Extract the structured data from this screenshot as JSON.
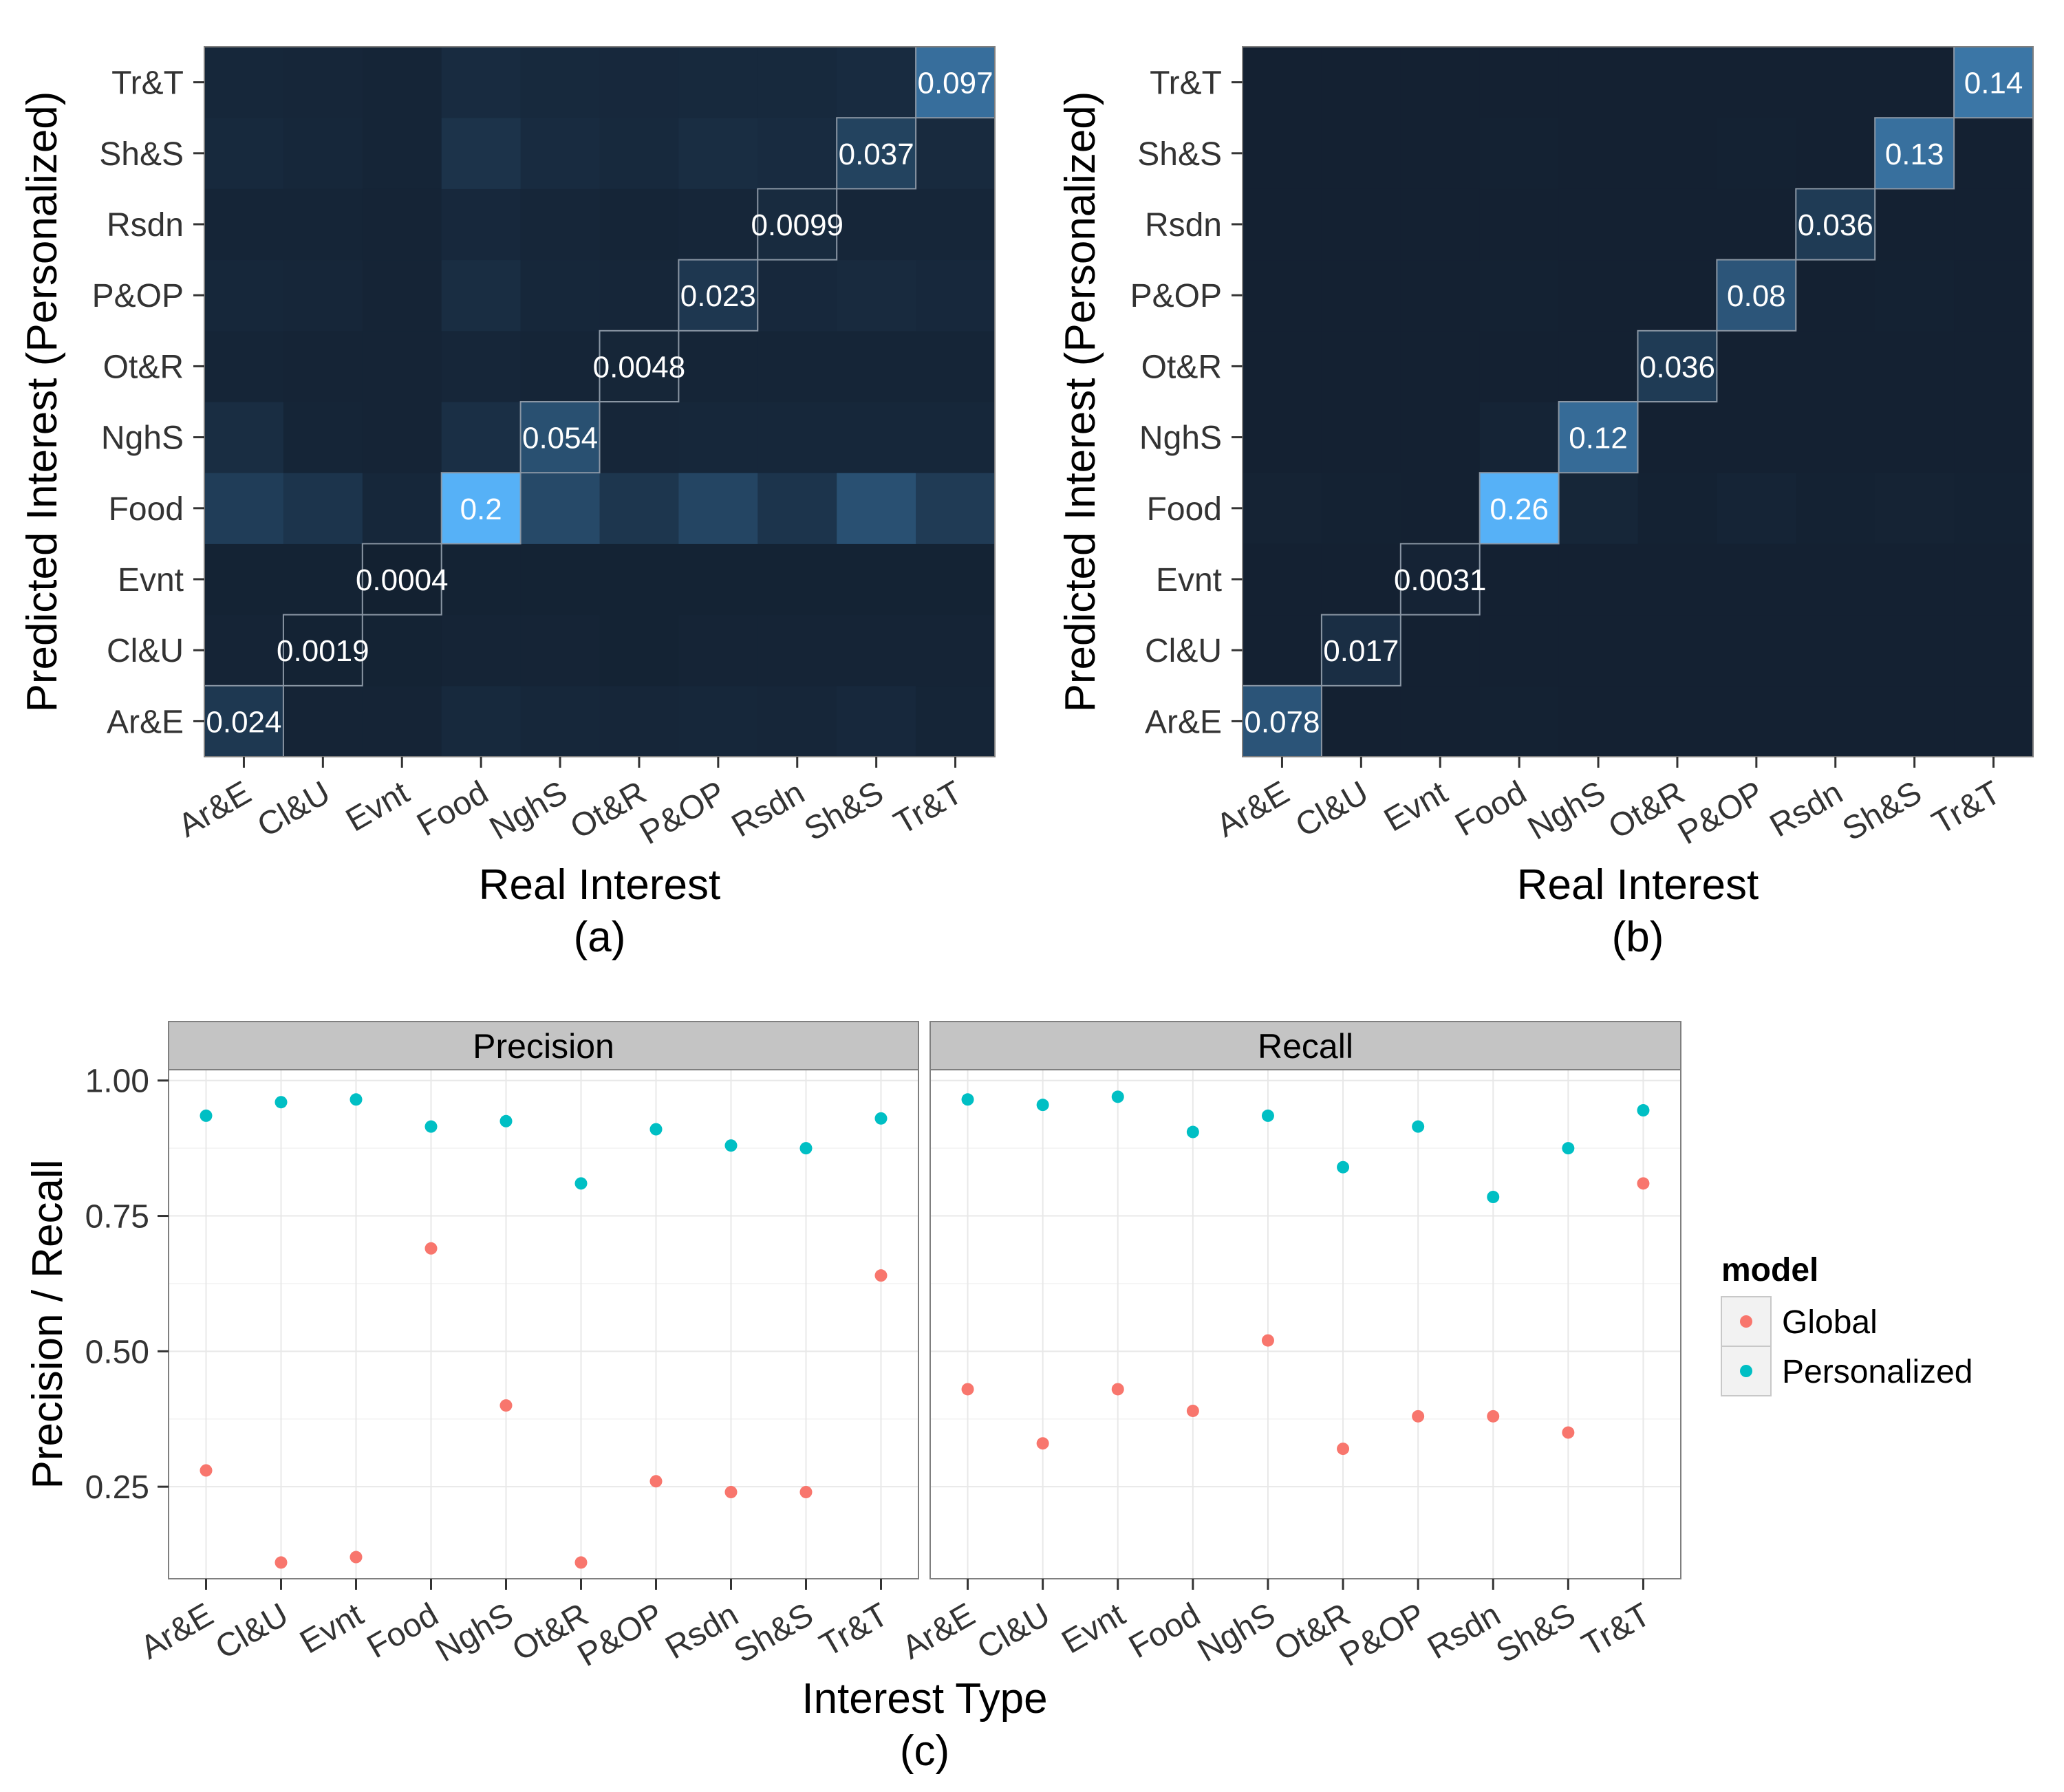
{
  "chart_data": [
    {
      "type": "heatmap",
      "panel_label": "(a)",
      "xlabel": "Real Interest",
      "ylabel": "Predicted Interest (Personalized)",
      "categories": [
        "Ar&E",
        "Cl&U",
        "Evnt",
        "Food",
        "NghS",
        "Ot&R",
        "P&OP",
        "Rsdn",
        "Sh&S",
        "Tr&T"
      ],
      "matrix": [
        [
          0.024,
          0.003,
          0.003,
          0.008,
          0.006,
          0.005,
          0.006,
          0.005,
          0.007,
          0.004
        ],
        [
          0.003,
          0.0019,
          0.002,
          0.003,
          0.003,
          0.002,
          0.003,
          0.003,
          0.003,
          0.003
        ],
        [
          0.002,
          0.002,
          0.0004,
          0.002,
          0.002,
          0.002,
          0.002,
          0.002,
          0.002,
          0.002
        ],
        [
          0.03,
          0.02,
          0.006,
          0.2,
          0.045,
          0.022,
          0.04,
          0.02,
          0.055,
          0.028
        ],
        [
          0.012,
          0.004,
          0.003,
          0.014,
          0.054,
          0.005,
          0.006,
          0.006,
          0.006,
          0.006
        ],
        [
          0.004,
          0.003,
          0.003,
          0.005,
          0.004,
          0.0048,
          0.004,
          0.004,
          0.004,
          0.004
        ],
        [
          0.006,
          0.005,
          0.003,
          0.012,
          0.006,
          0.005,
          0.023,
          0.007,
          0.009,
          0.007
        ],
        [
          0.004,
          0.004,
          0.003,
          0.007,
          0.005,
          0.004,
          0.005,
          0.0099,
          0.005,
          0.005
        ],
        [
          0.008,
          0.006,
          0.004,
          0.018,
          0.01,
          0.008,
          0.012,
          0.01,
          0.037,
          0.009
        ],
        [
          0.006,
          0.005,
          0.004,
          0.01,
          0.008,
          0.007,
          0.008,
          0.008,
          0.01,
          0.097
        ]
      ],
      "diagonal_labels": [
        "0.024",
        "0.0019",
        "0.0004",
        "0.2",
        "0.054",
        "0.0048",
        "0.023",
        "0.0099",
        "0.037",
        "0.097"
      ],
      "color_low": "#132030",
      "color_high": "#56b1f7"
    },
    {
      "type": "heatmap",
      "panel_label": "(b)",
      "xlabel": "Real Interest",
      "ylabel": "Predicted Interest (Personalized)",
      "categories": [
        "Ar&E",
        "Cl&U",
        "Evnt",
        "Food",
        "NghS",
        "Ot&R",
        "P&OP",
        "Rsdn",
        "Sh&S",
        "Tr&T"
      ],
      "matrix": [
        [
          0.078,
          0.001,
          0.001,
          0.002,
          0.001,
          0.001,
          0.001,
          0.001,
          0.001,
          0.001
        ],
        [
          0.001,
          0.017,
          0.001,
          0.001,
          0.001,
          0.001,
          0.001,
          0.001,
          0.001,
          0.001
        ],
        [
          0.001,
          0.001,
          0.0031,
          0.001,
          0.001,
          0.001,
          0.001,
          0.001,
          0.001,
          0.001
        ],
        [
          0.003,
          0.002,
          0.001,
          0.26,
          0.006,
          0.002,
          0.004,
          0.002,
          0.003,
          0.002
        ],
        [
          0.001,
          0.001,
          0.001,
          0.004,
          0.12,
          0.001,
          0.001,
          0.001,
          0.001,
          0.001
        ],
        [
          0.001,
          0.001,
          0.001,
          0.001,
          0.001,
          0.036,
          0.001,
          0.001,
          0.001,
          0.001
        ],
        [
          0.001,
          0.001,
          0.001,
          0.002,
          0.001,
          0.001,
          0.08,
          0.001,
          0.002,
          0.001
        ],
        [
          0.001,
          0.001,
          0.001,
          0.001,
          0.001,
          0.001,
          0.001,
          0.036,
          0.001,
          0.001
        ],
        [
          0.001,
          0.001,
          0.001,
          0.002,
          0.001,
          0.001,
          0.002,
          0.001,
          0.13,
          0.001
        ],
        [
          0.001,
          0.001,
          0.001,
          0.001,
          0.001,
          0.001,
          0.001,
          0.001,
          0.001,
          0.14
        ]
      ],
      "diagonal_labels": [
        "0.078",
        "0.017",
        "0.0031",
        "0.26",
        "0.12",
        "0.036",
        "0.08",
        "0.036",
        "0.13",
        "0.14"
      ],
      "color_low": "#132030",
      "color_high": "#56b1f7"
    },
    {
      "type": "scatter",
      "panel_label": "(c)",
      "xlabel": "Interest Type",
      "ylabel": "Precision / Recall",
      "categories": [
        "Ar&E",
        "Cl&U",
        "Evnt",
        "Food",
        "NghS",
        "Ot&R",
        "P&OP",
        "Rsdn",
        "Sh&S",
        "Tr&T"
      ],
      "y_ticks": [
        "0.25",
        "0.50",
        "0.75",
        "1.00"
      ],
      "ylim": [
        0.08,
        1.02
      ],
      "grid": true,
      "legend": {
        "title": "model",
        "position": "right",
        "entries": [
          "Global",
          "Personalized"
        ]
      },
      "colors": {
        "Global": "#f8766d",
        "Personalized": "#00bfc4"
      },
      "facets": [
        {
          "name": "Precision",
          "series": [
            {
              "name": "Global",
              "values": [
                0.28,
                0.11,
                0.12,
                0.69,
                0.4,
                0.11,
                0.26,
                0.24,
                0.24,
                0.64
              ]
            },
            {
              "name": "Personalized",
              "values": [
                0.935,
                0.96,
                0.965,
                0.915,
                0.925,
                0.81,
                0.91,
                0.88,
                0.875,
                0.93
              ]
            }
          ]
        },
        {
          "name": "Recall",
          "series": [
            {
              "name": "Global",
              "values": [
                0.43,
                0.33,
                0.43,
                0.39,
                0.52,
                0.32,
                0.38,
                0.38,
                0.35,
                0.81
              ]
            },
            {
              "name": "Personalized",
              "values": [
                0.965,
                0.955,
                0.97,
                0.905,
                0.935,
                0.84,
                0.915,
                0.785,
                0.875,
                0.945
              ]
            }
          ]
        }
      ]
    }
  ]
}
